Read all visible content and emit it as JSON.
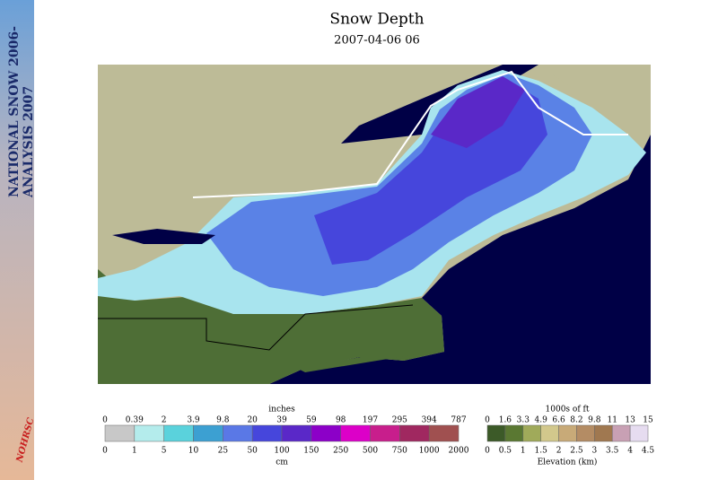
{
  "sidebar": {
    "line1": "NATIONAL SNOW 2006-",
    "line2": "ANALYSIS 2007",
    "logo": "NOHRSC"
  },
  "header": {
    "title": "Snow Depth",
    "subtitle": "2007-04-06 06"
  },
  "snow_legend": {
    "top_title": "inches",
    "bottom_title": "cm",
    "top_labels": [
      "0",
      "0.39",
      "2",
      "3.9",
      "9.8",
      "20",
      "39",
      "59",
      "98",
      "197",
      "295",
      "394",
      "787"
    ],
    "bottom_labels": [
      "0",
      "1",
      "5",
      "10",
      "25",
      "50",
      "100",
      "150",
      "250",
      "500",
      "750",
      "1000",
      "2000"
    ],
    "colors": [
      "#c8c8c8",
      "#b4ecec",
      "#5ad2dc",
      "#3ca0d2",
      "#5a78e6",
      "#4646dc",
      "#5a28c8",
      "#8c00c8",
      "#dc00c8",
      "#c81e8c",
      "#a02860",
      "#a05050"
    ]
  },
  "elevation_legend": {
    "top_title": "1000s of ft",
    "bottom_title": "Elevation (km)",
    "top_labels": [
      "0",
      "1.6",
      "3.3",
      "4.9",
      "6.6",
      "8.2",
      "9.8",
      "11",
      "13",
      "15"
    ],
    "bottom_labels": [
      "0",
      "0.5",
      "1",
      "1.5",
      "2",
      "2.5",
      "3",
      "3.5",
      "4",
      "4.5"
    ],
    "colors": [
      "#3c5a28",
      "#5a7832",
      "#a0aa5a",
      "#d2c88c",
      "#c8aa78",
      "#b48c64",
      "#a07850",
      "#c8a0b4",
      "#e6dcf0"
    ]
  }
}
